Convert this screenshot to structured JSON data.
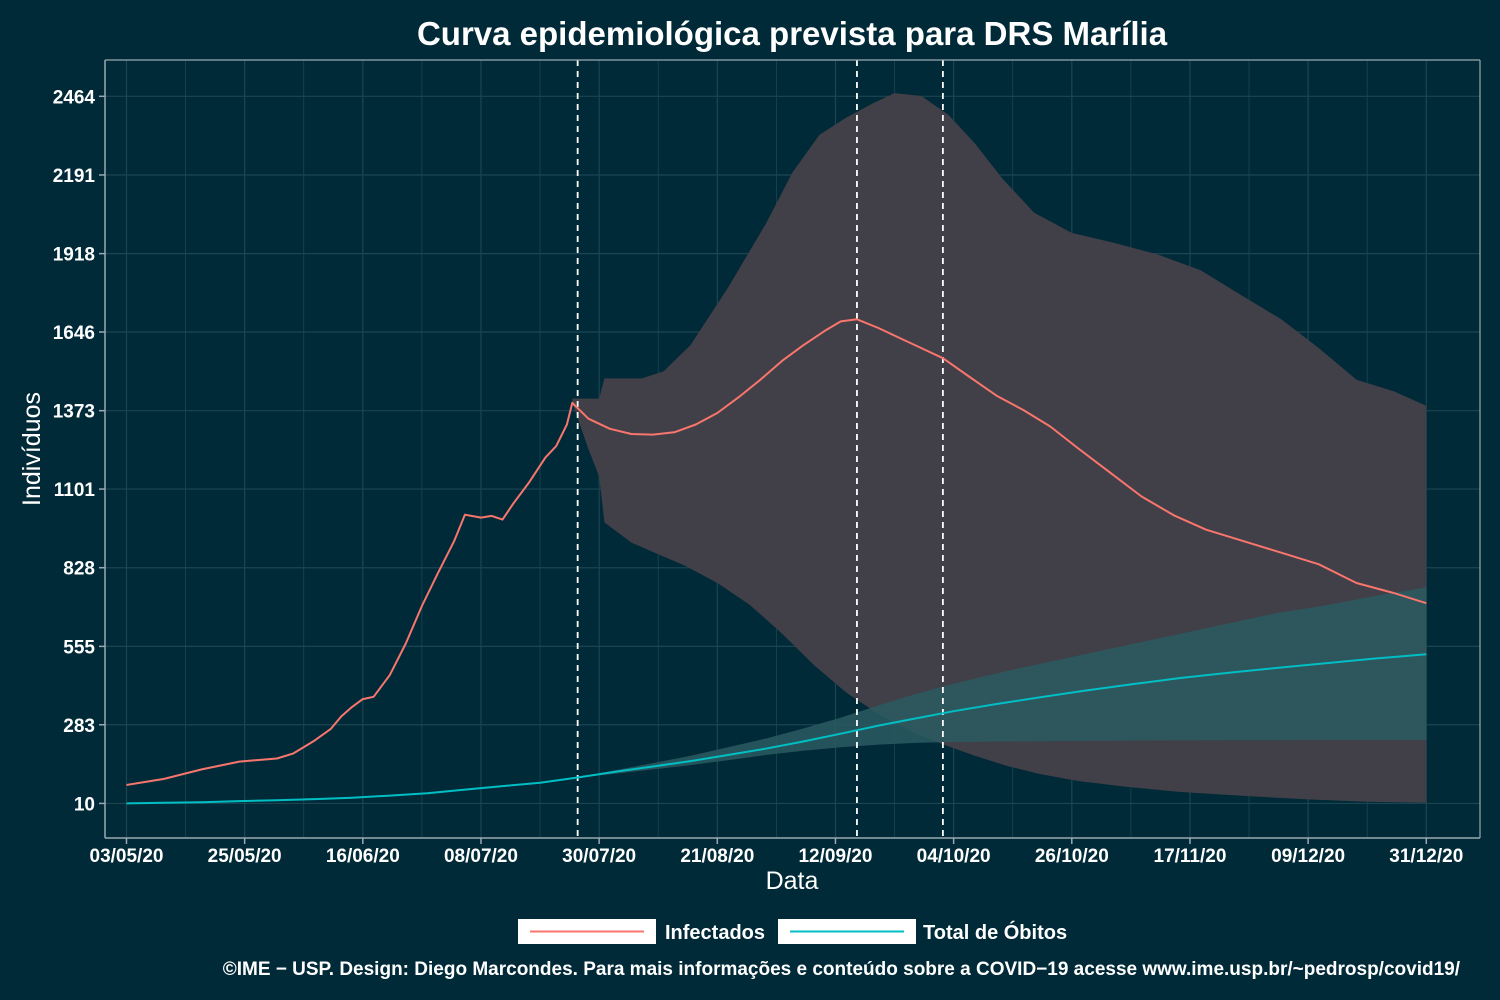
{
  "chart_data": {
    "type": "line",
    "title": "Curva epidemiológica prevista para DRS Marília",
    "xlabel": "Data",
    "ylabel": "Indivíduos",
    "caption": "©IME − USP. Design: Diego Marcondes. Para mais informações e conteúdo sobre a COVID−19 acesse www.ime.usp.br/~pedrosp/covid19/",
    "x_tick_labels": [
      "03/05/20",
      "25/05/20",
      "16/06/20",
      "08/07/20",
      "30/07/20",
      "21/08/20",
      "12/09/20",
      "04/10/20",
      "26/10/20",
      "17/11/20",
      "09/12/20",
      "31/12/20"
    ],
    "y_tick_labels": [
      "10",
      "283",
      "555",
      "828",
      "1101",
      "1373",
      "1646",
      "1918",
      "2191",
      "2464"
    ],
    "y_ticks": [
      10,
      283,
      555,
      828,
      1101,
      1373,
      1646,
      1918,
      2191,
      2464
    ],
    "xlim": [
      "2020-04-29",
      "2021-01-10"
    ],
    "ylim": [
      -110,
      2590
    ],
    "grid": true,
    "legend_position": "bottom",
    "vertical_lines": [
      "2020-07-26",
      "2020-09-16",
      "2020-10-02"
    ],
    "colors": {
      "background": "#012a38",
      "infectados": "#f8766d",
      "obitos": "#00bfc4",
      "band_infectados": "#413f47",
      "band_obitos": "#2b5a62",
      "grid": "#1c4553"
    },
    "series": [
      {
        "name": "Infectados",
        "color": "#f8766d",
        "points": [
          [
            "2020-05-03",
            74
          ],
          [
            "2020-05-10",
            95
          ],
          [
            "2020-05-17",
            128
          ],
          [
            "2020-05-24",
            155
          ],
          [
            "2020-05-31",
            166
          ],
          [
            "2020-06-03",
            183
          ],
          [
            "2020-06-07",
            228
          ],
          [
            "2020-06-10",
            268
          ],
          [
            "2020-06-12",
            312
          ],
          [
            "2020-06-14",
            345
          ],
          [
            "2020-06-16",
            372
          ],
          [
            "2020-06-18",
            380
          ],
          [
            "2020-06-21",
            455
          ],
          [
            "2020-06-24",
            565
          ],
          [
            "2020-06-27",
            695
          ],
          [
            "2020-06-30",
            810
          ],
          [
            "2020-07-03",
            920
          ],
          [
            "2020-07-05",
            1012
          ],
          [
            "2020-07-08",
            1002
          ],
          [
            "2020-07-10",
            1008
          ],
          [
            "2020-07-12",
            995
          ],
          [
            "2020-07-14",
            1050
          ],
          [
            "2020-07-17",
            1125
          ],
          [
            "2020-07-20",
            1210
          ],
          [
            "2020-07-22",
            1250
          ],
          [
            "2020-07-24",
            1325
          ],
          [
            "2020-07-25",
            1400
          ],
          [
            "2020-07-28",
            1345
          ],
          [
            "2020-08-01",
            1310
          ],
          [
            "2020-08-05",
            1292
          ],
          [
            "2020-08-09",
            1290
          ],
          [
            "2020-08-13",
            1298
          ],
          [
            "2020-08-17",
            1325
          ],
          [
            "2020-08-21",
            1365
          ],
          [
            "2020-08-25",
            1420
          ],
          [
            "2020-08-29",
            1480
          ],
          [
            "2020-09-02",
            1545
          ],
          [
            "2020-09-06",
            1600
          ],
          [
            "2020-09-10",
            1650
          ],
          [
            "2020-09-13",
            1683
          ],
          [
            "2020-09-16",
            1690
          ],
          [
            "2020-09-20",
            1660
          ],
          [
            "2020-09-24",
            1625
          ],
          [
            "2020-09-28",
            1590
          ],
          [
            "2020-10-02",
            1555
          ],
          [
            "2020-10-07",
            1490
          ],
          [
            "2020-10-12",
            1425
          ],
          [
            "2020-10-17",
            1375
          ],
          [
            "2020-10-22",
            1318
          ],
          [
            "2020-10-27",
            1245
          ],
          [
            "2020-11-02",
            1160
          ],
          [
            "2020-11-08",
            1075
          ],
          [
            "2020-11-14",
            1010
          ],
          [
            "2020-11-20",
            960
          ],
          [
            "2020-11-27",
            920
          ],
          [
            "2020-12-04",
            880
          ],
          [
            "2020-12-11",
            840
          ],
          [
            "2020-12-18",
            775
          ],
          [
            "2020-12-25",
            740
          ],
          [
            "2020-12-31",
            705
          ]
        ],
        "band": {
          "upper": [
            [
              "2020-07-25",
              1415
            ],
            [
              "2020-07-30",
              1415
            ],
            [
              "2020-07-31",
              1485
            ],
            [
              "2020-08-07",
              1485
            ],
            [
              "2020-08-11",
              1510
            ],
            [
              "2020-08-16",
              1600
            ],
            [
              "2020-08-23",
              1800
            ],
            [
              "2020-08-30",
              2020
            ],
            [
              "2020-09-04",
              2200
            ],
            [
              "2020-09-09",
              2330
            ],
            [
              "2020-09-14",
              2390
            ],
            [
              "2020-09-19",
              2440
            ],
            [
              "2020-09-23",
              2475
            ],
            [
              "2020-09-28",
              2465
            ],
            [
              "2020-10-03",
              2400
            ],
            [
              "2020-10-08",
              2300
            ],
            [
              "2020-10-13",
              2180
            ],
            [
              "2020-10-19",
              2060
            ],
            [
              "2020-10-26",
              1990
            ],
            [
              "2020-11-03",
              1955
            ],
            [
              "2020-11-11",
              1915
            ],
            [
              "2020-11-19",
              1860
            ],
            [
              "2020-11-26",
              1780
            ],
            [
              "2020-12-04",
              1690
            ],
            [
              "2020-12-11",
              1590
            ],
            [
              "2020-12-18",
              1480
            ],
            [
              "2020-12-25",
              1440
            ],
            [
              "2020-12-31",
              1390
            ]
          ],
          "lower": [
            [
              "2020-07-25",
              1400
            ],
            [
              "2020-07-28",
              1240
            ],
            [
              "2020-07-30",
              1145
            ],
            [
              "2020-07-31",
              985
            ],
            [
              "2020-08-05",
              915
            ],
            [
              "2020-08-10",
              875
            ],
            [
              "2020-08-15",
              835
            ],
            [
              "2020-08-21",
              775
            ],
            [
              "2020-08-27",
              700
            ],
            [
              "2020-09-02",
              600
            ],
            [
              "2020-09-08",
              490
            ],
            [
              "2020-09-14",
              395
            ],
            [
              "2020-09-20",
              320
            ],
            [
              "2020-09-26",
              260
            ],
            [
              "2020-10-02",
              215
            ],
            [
              "2020-10-08",
              175
            ],
            [
              "2020-10-14",
              140
            ],
            [
              "2020-10-20",
              112
            ],
            [
              "2020-10-27",
              88
            ],
            [
              "2020-11-05",
              68
            ],
            [
              "2020-11-15",
              50
            ],
            [
              "2020-11-27",
              36
            ],
            [
              "2020-12-09",
              24
            ],
            [
              "2020-12-20",
              16
            ],
            [
              "2020-12-31",
              12
            ]
          ]
        }
      },
      {
        "name": "Total de Óbitos",
        "color": "#00bfc4",
        "points": [
          [
            "2020-05-03",
            10
          ],
          [
            "2020-05-10",
            12
          ],
          [
            "2020-05-17",
            14
          ],
          [
            "2020-05-24",
            18
          ],
          [
            "2020-05-31",
            21
          ],
          [
            "2020-06-07",
            25
          ],
          [
            "2020-06-14",
            30
          ],
          [
            "2020-06-21",
            37
          ],
          [
            "2020-06-28",
            45
          ],
          [
            "2020-07-05",
            58
          ],
          [
            "2020-07-12",
            70
          ],
          [
            "2020-07-19",
            82
          ],
          [
            "2020-07-26",
            100
          ],
          [
            "2020-08-02",
            120
          ],
          [
            "2020-08-09",
            138
          ],
          [
            "2020-08-16",
            157
          ],
          [
            "2020-08-23",
            178
          ],
          [
            "2020-08-30",
            200
          ],
          [
            "2020-09-06",
            225
          ],
          [
            "2020-09-13",
            252
          ],
          [
            "2020-09-20",
            280
          ],
          [
            "2020-09-27",
            305
          ],
          [
            "2020-10-04",
            330
          ],
          [
            "2020-10-12",
            355
          ],
          [
            "2020-10-20",
            378
          ],
          [
            "2020-10-28",
            400
          ],
          [
            "2020-11-06",
            423
          ],
          [
            "2020-11-15",
            445
          ],
          [
            "2020-11-24",
            463
          ],
          [
            "2020-12-03",
            480
          ],
          [
            "2020-12-12",
            496
          ],
          [
            "2020-12-21",
            512
          ],
          [
            "2020-12-31",
            528
          ]
        ],
        "band": {
          "upper": [
            [
              "2020-07-26",
              100
            ],
            [
              "2020-08-02",
              125
            ],
            [
              "2020-08-09",
              150
            ],
            [
              "2020-08-16",
              175
            ],
            [
              "2020-08-23",
              205
            ],
            [
              "2020-08-30",
              235
            ],
            [
              "2020-09-06",
              270
            ],
            [
              "2020-09-13",
              308
            ],
            [
              "2020-09-20",
              350
            ],
            [
              "2020-09-27",
              390
            ],
            [
              "2020-10-04",
              425
            ],
            [
              "2020-10-14",
              470
            ],
            [
              "2020-10-24",
              510
            ],
            [
              "2020-11-03",
              550
            ],
            [
              "2020-11-13",
              590
            ],
            [
              "2020-11-23",
              630
            ],
            [
              "2020-12-03",
              670
            ],
            [
              "2020-12-13",
              700
            ],
            [
              "2020-12-23",
              735
            ],
            [
              "2020-12-31",
              760
            ]
          ],
          "lower": [
            [
              "2020-07-26",
              100
            ],
            [
              "2020-08-02",
              113
            ],
            [
              "2020-08-09",
              128
            ],
            [
              "2020-08-16",
              143
            ],
            [
              "2020-08-23",
              160
            ],
            [
              "2020-08-30",
              178
            ],
            [
              "2020-09-06",
              193
            ],
            [
              "2020-09-13",
              205
            ],
            [
              "2020-09-20",
              214
            ],
            [
              "2020-09-27",
              220
            ],
            [
              "2020-10-04",
              223
            ],
            [
              "2020-10-20",
              226
            ],
            [
              "2020-11-05",
              228
            ],
            [
              "2020-11-25",
              229
            ],
            [
              "2020-12-15",
              230
            ],
            [
              "2020-12-31",
              230
            ]
          ]
        }
      }
    ]
  }
}
